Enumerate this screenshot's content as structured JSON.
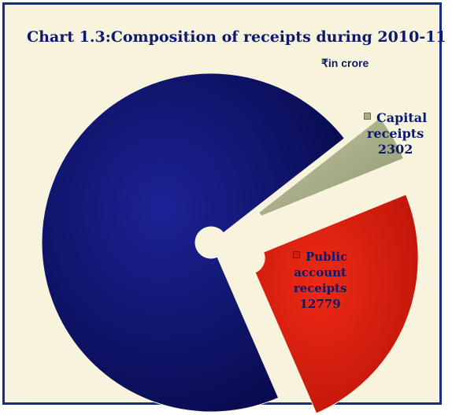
{
  "chart_data": {
    "type": "pie",
    "title": "Chart 1.3:Composition of receipts during 2010-11",
    "unit": "₹in crore",
    "slices": [
      {
        "label_lines": [
          "Capital",
          "receipts"
        ],
        "value": 2302,
        "value_label": "2302",
        "color": "#a7ae87"
      },
      {
        "label_lines": [
          "Public",
          "account",
          "receipts"
        ],
        "value": 12779,
        "value_label": "12779",
        "color": "#d91c0e"
      },
      {
        "label_lines": [],
        "value": 36860,
        "value_label": "",
        "color": "#0e1166"
      }
    ],
    "legend": "none",
    "style": "exploded doughnut"
  }
}
